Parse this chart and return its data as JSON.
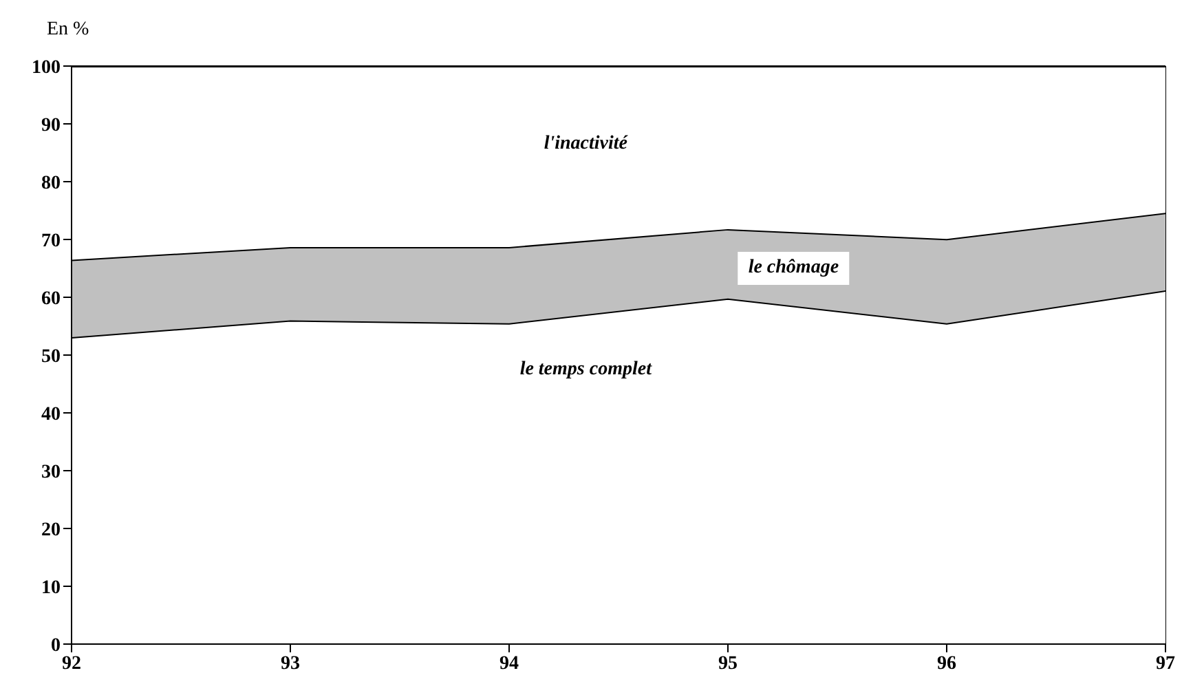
{
  "chart_data": {
    "type": "area",
    "stacked": true,
    "ylabel": "En %",
    "x": [
      92,
      93,
      94,
      95,
      96,
      97
    ],
    "xlim": [
      92,
      97
    ],
    "xticks": [
      92,
      93,
      94,
      95,
      96,
      97
    ],
    "ylim": [
      0,
      100
    ],
    "yticks": [
      0,
      10,
      20,
      30,
      40,
      50,
      60,
      70,
      80,
      90,
      100
    ],
    "legend": false,
    "series": [
      {
        "name": "le temps complet",
        "color": "#ffffff",
        "values": [
          53.1,
          56,
          55.5,
          59.8,
          55.5,
          61.2
        ]
      },
      {
        "name": "le chômage",
        "color": "#c0c0c0",
        "values": [
          13.4,
          12.7,
          13.2,
          12,
          14.6,
          13.4
        ]
      },
      {
        "name": "l'inactivité",
        "color": "#ffffff",
        "values": [
          33.5,
          31.3,
          31.3,
          28.2,
          29.9,
          25.4
        ]
      }
    ]
  }
}
